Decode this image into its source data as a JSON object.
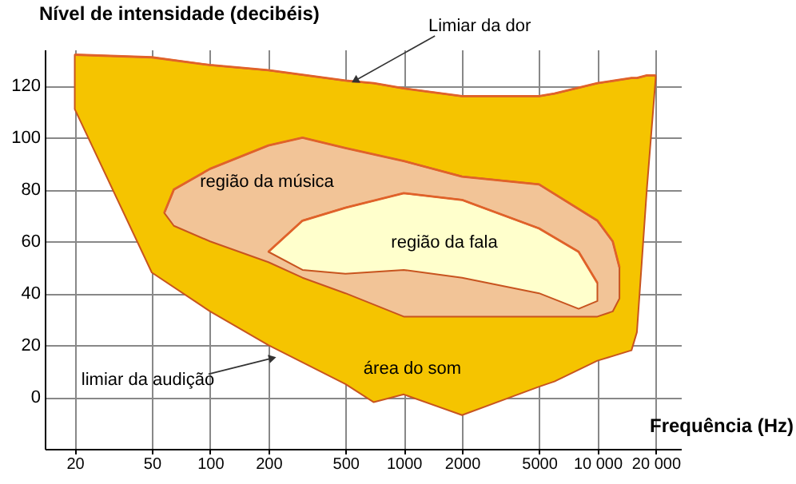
{
  "chart_data": {
    "type": "line",
    "xlabel": "Frequência (Hz)",
    "ylabel": "Nível de intensidade (decibéis)",
    "log": "x",
    "xlim": [
      14,
      27000
    ],
    "xticks": [
      20,
      50,
      100,
      200,
      500,
      1000,
      2000,
      5000,
      {
        "value": 10000,
        "label": "10 000"
      },
      {
        "value": 20000,
        "label": "20 000"
      }
    ],
    "ylim": [
      -20,
      134
    ],
    "yticks": [
      0,
      20,
      40,
      60,
      80,
      100,
      120
    ],
    "grid": true,
    "colors": [
      "#f5c400",
      "#f2c497",
      "#ffffcc"
    ],
    "series": [
      {
        "color": "#e0622a",
        "x": [
          20,
          50,
          100,
          200,
          500,
          700,
          1000,
          2000,
          5000,
          6000,
          10000,
          15000,
          16000,
          18000,
          20000
        ],
        "values": [
          132,
          131,
          128,
          126,
          122,
          121,
          119,
          116,
          116,
          117,
          121,
          123,
          123,
          124,
          124
        ],
        "lower": [
          111,
          48,
          33,
          20,
          5,
          -2,
          1,
          -7,
          4,
          6,
          14,
          18,
          25,
          80,
          123
        ],
        "upper": [
          132,
          131,
          128,
          126,
          122,
          121,
          119,
          116,
          116,
          117,
          121,
          123,
          123,
          124,
          124
        ]
      },
      {
        "color": "#e0622a",
        "x": [
          58,
          65,
          100,
          200,
          300,
          500,
          1000,
          2000,
          5000,
          10000,
          12000,
          13000
        ],
        "values": [
          71,
          80,
          88,
          97,
          100,
          96,
          91,
          85,
          82,
          68,
          60,
          50
        ],
        "lower": [
          71,
          66,
          60,
          52,
          46,
          40,
          31,
          31,
          31,
          31,
          33,
          38
        ],
        "upper": [
          71,
          80,
          88,
          97,
          100,
          96,
          91,
          85,
          82,
          68,
          60,
          50
        ]
      },
      {
        "color": "#e0622a",
        "x": [
          200,
          300,
          500,
          1000,
          2000,
          5000,
          8000,
          10000
        ],
        "values": [
          56,
          68,
          73,
          78.6,
          76,
          65,
          56,
          44
        ],
        "lower": [
          56,
          49,
          47.5,
          49,
          46,
          40,
          34,
          37
        ],
        "upper": [
          56,
          68,
          73,
          78.6,
          76,
          65,
          56,
          44
        ]
      }
    ],
    "annotations": [
      {
        "text": "Limiar da dor",
        "x": 560,
        "y": 122
      },
      {
        "text": "limiar da audição",
        "x": 210,
        "y": 15
      },
      "região da música",
      "região da fala",
      "área do som"
    ]
  }
}
